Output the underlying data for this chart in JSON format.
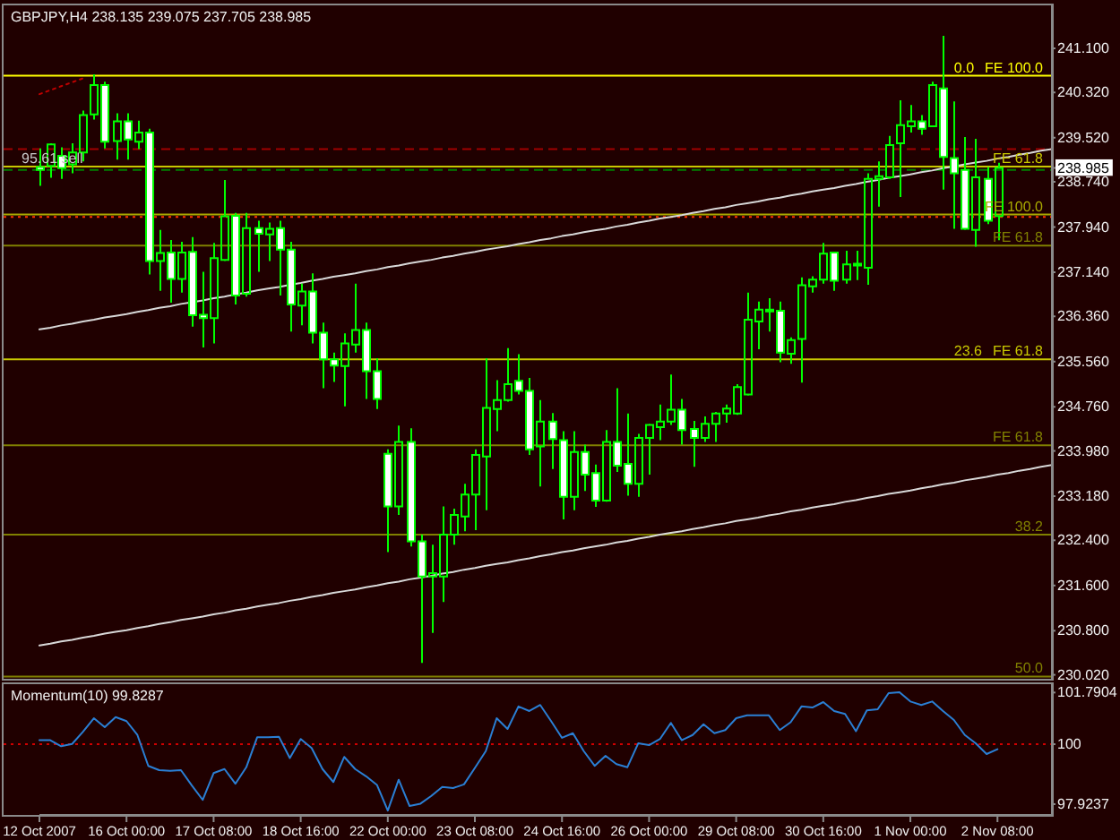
{
  "chart_data": [
    {
      "type": "candlestick",
      "title": "GBPJPY,H4 238.135 239.075 237.705 238.985",
      "color": "#00ff00",
      "categories": [
        null,
        null,
        null,
        null,
        null,
        null,
        null,
        null,
        null,
        null,
        null,
        null,
        null,
        null,
        null,
        null,
        null,
        null,
        null,
        null,
        null,
        null,
        null,
        null,
        null,
        null,
        null,
        null,
        null,
        null,
        null,
        null,
        null,
        null,
        null,
        null,
        null,
        null,
        null,
        null,
        null,
        null,
        null,
        null,
        null,
        null,
        null,
        null,
        null,
        null,
        null,
        null,
        null,
        null,
        null,
        null,
        null,
        null,
        null,
        null,
        null,
        null,
        null,
        null,
        null,
        null,
        null,
        null,
        null,
        null,
        null,
        null,
        null,
        null,
        null,
        null,
        null,
        null,
        null,
        null,
        null,
        null,
        null,
        null,
        null,
        null,
        null,
        null,
        null,
        null,
        null,
        null,
        null,
        null
      ],
      "ohlc": [
        [
          239.0,
          239.33,
          238.67,
          238.95
        ],
        [
          239.02,
          239.42,
          238.81,
          239.4
        ],
        [
          239.2,
          239.35,
          238.79,
          238.98
        ],
        [
          239.05,
          239.42,
          238.89,
          239.26
        ],
        [
          239.26,
          240.0,
          239.1,
          239.92
        ],
        [
          239.93,
          240.64,
          239.84,
          240.45
        ],
        [
          240.45,
          240.51,
          239.33,
          239.45
        ],
        [
          239.46,
          239.95,
          239.13,
          239.81
        ],
        [
          239.81,
          239.95,
          239.13,
          239.49
        ],
        [
          239.45,
          239.82,
          239.32,
          239.61
        ],
        [
          239.61,
          239.68,
          237.1,
          237.34
        ],
        [
          237.34,
          237.89,
          236.81,
          237.48
        ],
        [
          237.49,
          237.71,
          236.6,
          237.02
        ],
        [
          237.02,
          237.68,
          236.78,
          237.49
        ],
        [
          237.5,
          237.76,
          236.18,
          236.38
        ],
        [
          236.39,
          237.15,
          235.81,
          236.33
        ],
        [
          236.33,
          237.66,
          235.88,
          237.39
        ],
        [
          237.36,
          238.77,
          237.34,
          238.13
        ],
        [
          238.14,
          238.19,
          236.57,
          236.73
        ],
        [
          236.76,
          238.19,
          236.71,
          237.92
        ],
        [
          237.92,
          238.05,
          237.15,
          237.82
        ],
        [
          237.81,
          238.02,
          237.34,
          237.91
        ],
        [
          237.92,
          238.05,
          236.73,
          237.54
        ],
        [
          237.54,
          237.68,
          236.09,
          236.57
        ],
        [
          236.55,
          236.94,
          236.2,
          236.8
        ],
        [
          236.8,
          237.12,
          235.88,
          236.07
        ],
        [
          236.07,
          236.25,
          235.09,
          235.6
        ],
        [
          235.6,
          235.72,
          235.2,
          235.49
        ],
        [
          235.48,
          236.06,
          234.77,
          235.88
        ],
        [
          235.86,
          236.94,
          235.72,
          236.12
        ],
        [
          236.12,
          236.25,
          234.9,
          235.39
        ],
        [
          235.39,
          235.62,
          234.72,
          234.9
        ],
        [
          233.93,
          234.01,
          232.19,
          233.0
        ],
        [
          233.0,
          234.43,
          232.85,
          234.14
        ],
        [
          234.14,
          234.38,
          232.29,
          232.38
        ],
        [
          232.38,
          232.5,
          230.23,
          231.76
        ],
        [
          231.76,
          232.32,
          230.76,
          231.82
        ],
        [
          231.76,
          233.0,
          231.31,
          232.5
        ],
        [
          232.5,
          232.96,
          232.32,
          232.85
        ],
        [
          232.82,
          233.4,
          232.56,
          233.21
        ],
        [
          233.21,
          234.01,
          232.58,
          233.91
        ],
        [
          233.88,
          235.62,
          232.93,
          234.74
        ],
        [
          234.72,
          235.23,
          234.33,
          234.88
        ],
        [
          234.88,
          235.8,
          234.85,
          235.16
        ],
        [
          235.22,
          235.69,
          234.98,
          235.04
        ],
        [
          235.04,
          235.27,
          233.91,
          234.01
        ],
        [
          234.06,
          234.88,
          233.35,
          234.5
        ],
        [
          234.5,
          234.65,
          233.66,
          234.19
        ],
        [
          234.17,
          234.33,
          232.77,
          233.17
        ],
        [
          233.17,
          234.33,
          232.93,
          233.96
        ],
        [
          233.96,
          234.09,
          233.27,
          233.56
        ],
        [
          233.59,
          233.74,
          232.99,
          233.1
        ],
        [
          233.1,
          234.35,
          233.08,
          234.14
        ],
        [
          234.14,
          235.09,
          233.61,
          233.72
        ],
        [
          233.75,
          234.64,
          233.19,
          233.4
        ],
        [
          233.4,
          234.28,
          233.17,
          234.21
        ],
        [
          234.21,
          234.46,
          233.56,
          234.44
        ],
        [
          234.4,
          234.8,
          234.17,
          234.5
        ],
        [
          234.5,
          235.33,
          234.44,
          234.71
        ],
        [
          234.71,
          234.9,
          234.09,
          234.35
        ],
        [
          234.37,
          234.51,
          233.7,
          234.21
        ],
        [
          234.21,
          234.59,
          234.14,
          234.46
        ],
        [
          234.46,
          234.67,
          234.14,
          234.64
        ],
        [
          234.64,
          234.8,
          234.48,
          234.73
        ],
        [
          234.64,
          235.16,
          234.62,
          235.11
        ],
        [
          234.98,
          236.78,
          234.96,
          236.3
        ],
        [
          236.27,
          236.62,
          235.78,
          236.48
        ],
        [
          236.48,
          236.68,
          236.09,
          236.46
        ],
        [
          236.46,
          236.62,
          235.55,
          235.72
        ],
        [
          235.7,
          235.99,
          235.52,
          235.94
        ],
        [
          235.96,
          237.05,
          235.19,
          236.91
        ],
        [
          236.89,
          237.07,
          236.78,
          237.01
        ],
        [
          237.01,
          237.66,
          236.94,
          237.47
        ],
        [
          237.49,
          237.49,
          236.81,
          236.99
        ],
        [
          237.01,
          237.52,
          236.94,
          237.28
        ],
        [
          237.29,
          237.52,
          237.0,
          237.28
        ],
        [
          237.22,
          238.89,
          236.92,
          238.79
        ],
        [
          238.79,
          239.1,
          238.3,
          238.84
        ],
        [
          238.82,
          239.55,
          238.79,
          239.39
        ],
        [
          239.42,
          240.18,
          238.47,
          239.74
        ],
        [
          239.72,
          240.1,
          239.61,
          239.81
        ],
        [
          239.81,
          239.92,
          239.57,
          239.68
        ],
        [
          239.72,
          240.51,
          239.72,
          240.45
        ],
        [
          240.39,
          241.32,
          238.6,
          239.18
        ],
        [
          239.16,
          240.16,
          237.91,
          238.89
        ],
        [
          238.95,
          239.53,
          237.89,
          237.91
        ],
        [
          237.89,
          239.5,
          237.59,
          238.82
        ],
        [
          238.79,
          239.0,
          237.99,
          238.05
        ],
        [
          238.135,
          239.075,
          237.705,
          238.985
        ],
        null,
        null,
        null,
        null,
        null
      ],
      "series": [
        {
          "type": "line",
          "color": "#d8d8d8",
          "values": [
            236.13,
            236.16,
            236.2,
            236.23,
            236.27,
            236.3,
            236.34,
            236.37,
            236.4,
            236.44,
            236.47,
            236.51,
            236.54,
            236.58,
            236.61,
            236.64,
            236.68,
            236.71,
            236.75,
            236.78,
            236.82,
            236.85,
            236.88,
            236.92,
            236.95,
            236.99,
            237.02,
            237.06,
            237.09,
            237.12,
            237.16,
            237.19,
            237.23,
            237.26,
            237.3,
            237.33,
            237.36,
            237.4,
            237.43,
            237.47,
            237.5,
            237.54,
            237.57,
            237.6,
            237.64,
            237.67,
            237.71,
            237.74,
            237.78,
            237.81,
            237.85,
            237.88,
            237.91,
            237.95,
            237.98,
            238.02,
            238.05,
            238.09,
            238.12,
            238.15,
            238.19,
            238.22,
            238.26,
            238.29,
            238.33,
            238.36,
            238.39,
            238.43,
            238.46,
            238.5,
            238.53,
            238.57,
            238.6,
            238.63,
            238.67,
            238.7,
            238.74,
            238.77,
            238.81,
            238.84,
            238.87,
            238.91,
            238.94,
            238.98,
            239.01,
            239.05,
            239.08,
            239.11,
            239.15,
            239.18,
            239.22,
            239.25,
            239.29,
            239.32
          ]
        },
        {
          "type": "line",
          "color": "#d8d8d8",
          "values": [
            230.54,
            230.57,
            230.61,
            230.64,
            230.68,
            230.71,
            230.75,
            230.78,
            230.81,
            230.85,
            230.88,
            230.92,
            230.95,
            230.99,
            231.02,
            231.05,
            231.09,
            231.12,
            231.16,
            231.19,
            231.23,
            231.26,
            231.29,
            231.33,
            231.36,
            231.4,
            231.43,
            231.47,
            231.5,
            231.53,
            231.57,
            231.6,
            231.64,
            231.67,
            231.71,
            231.74,
            231.77,
            231.81,
            231.84,
            231.88,
            231.91,
            231.95,
            231.98,
            232.01,
            232.05,
            232.08,
            232.12,
            232.15,
            232.19,
            232.22,
            232.26,
            232.29,
            232.32,
            232.36,
            232.39,
            232.43,
            232.46,
            232.5,
            232.53,
            232.56,
            232.6,
            232.63,
            232.67,
            232.7,
            232.74,
            232.77,
            232.8,
            232.84,
            232.87,
            232.91,
            232.94,
            232.98,
            233.01,
            233.04,
            233.08,
            233.11,
            233.15,
            233.18,
            233.22,
            233.25,
            233.28,
            233.32,
            233.35,
            233.39,
            233.42,
            233.46,
            233.49,
            233.52,
            233.56,
            233.59,
            233.63,
            233.66,
            233.7,
            233.73
          ]
        },
        {
          "type": "line",
          "color": "#c00000",
          "line_style": "dotted",
          "values": [
            240.29,
            240.36,
            240.43,
            240.5,
            240.57,
            null,
            null,
            null,
            null,
            null,
            null,
            null,
            null,
            null,
            null,
            null,
            null,
            null,
            null,
            null,
            null,
            null,
            null,
            null,
            null,
            null,
            null,
            null,
            null,
            null,
            null,
            null,
            null,
            null,
            null,
            null,
            null,
            null,
            null,
            null,
            null,
            null,
            null,
            null,
            null,
            null,
            null,
            null,
            null,
            null,
            null,
            null,
            null,
            null,
            null,
            null,
            null,
            null,
            null,
            null,
            null,
            null,
            null,
            null,
            null,
            null,
            null,
            null,
            null,
            null,
            null,
            null,
            null,
            null,
            null,
            null,
            null,
            null,
            null,
            null,
            null,
            null,
            null,
            null,
            null,
            null,
            null,
            null,
            null,
            null,
            null,
            null,
            null,
            null
          ]
        }
      ],
      "ylim": [
        229.95,
        241.86
      ],
      "yticks": [
        {
          "value": 241.1,
          "label": "241.100"
        },
        {
          "value": 240.32,
          "label": "240.320"
        },
        {
          "value": 239.52,
          "label": "239.520"
        },
        {
          "value": 238.985,
          "label": "238.985"
        },
        {
          "value": 238.74,
          "label": "238.740"
        },
        {
          "value": 237.94,
          "label": "237.940"
        },
        {
          "value": 237.14,
          "label": "237.140"
        },
        {
          "value": 236.36,
          "label": "236.360"
        },
        {
          "value": 235.56,
          "label": "235.560"
        },
        {
          "value": 234.76,
          "label": "234.760"
        },
        {
          "value": 233.98,
          "label": "233.980"
        },
        {
          "value": 233.18,
          "label": "233.180"
        },
        {
          "value": 232.4,
          "label": "232.400"
        },
        {
          "value": 231.6,
          "label": "231.600"
        },
        {
          "value": 230.8,
          "label": "230.800"
        },
        {
          "value": 230.02,
          "label": "230.020"
        }
      ],
      "tick_labels": "y",
      "ref_lines": [
        {
          "axis": "y",
          "value": 240.615,
          "label": "FE 100.0",
          "color": "#ffff00"
        },
        {
          "axis": "y",
          "value": 239.32,
          "color": "#a00000",
          "line_style": "dashed"
        },
        {
          "axis": "y",
          "value": 239.01,
          "label": "FE 61.8",
          "color": "#c8c800"
        },
        {
          "axis": "y",
          "value": 238.95,
          "label": "95.61 sell",
          "color": "#008000",
          "line_style": "dashed"
        },
        {
          "axis": "y",
          "value": 238.16,
          "label": "FE 100.0",
          "color": "#a8a800"
        },
        {
          "axis": "y",
          "value": 238.12,
          "color": "#ff3000",
          "line_style": "dotted"
        },
        {
          "axis": "y",
          "value": 237.61,
          "label": "FE 61.8",
          "color": "#808000"
        },
        {
          "axis": "y",
          "value": 235.6,
          "label": "FE 61.8",
          "color": "#c8c800"
        },
        {
          "axis": "y",
          "value": 234.08,
          "label": "FE 61.8",
          "color": "#808000"
        },
        {
          "axis": "y",
          "value": 232.5,
          "color": "#808000"
        },
        {
          "axis": "y",
          "value": 229.99,
          "color": "#808000"
        }
      ],
      "annotations": [
        {
          "text": "0.0",
          "y": 240.615
        },
        {
          "text": "23.6",
          "y": 235.6
        },
        {
          "text": "38.2",
          "y": 232.5
        },
        {
          "text": "50.0",
          "y": 229.99
        }
      ]
    },
    {
      "type": "line",
      "title": "Momentum(10) 99.8287",
      "color": "#2a7fd4",
      "categories": [
        "12 Oct 2007",
        null,
        null,
        null,
        null,
        null,
        null,
        null,
        "16 Oct 00:00",
        null,
        null,
        null,
        null,
        null,
        null,
        null,
        "17 Oct 08:00",
        null,
        null,
        null,
        null,
        null,
        null,
        null,
        "18 Oct 16:00",
        null,
        null,
        null,
        null,
        null,
        null,
        null,
        "22 Oct 00:00",
        null,
        null,
        null,
        null,
        null,
        null,
        null,
        "23 Oct 08:00",
        null,
        null,
        null,
        null,
        null,
        null,
        null,
        "24 Oct 16:00",
        null,
        null,
        null,
        null,
        null,
        null,
        null,
        "26 Oct 00:00",
        null,
        null,
        null,
        null,
        null,
        null,
        null,
        "29 Oct 08:00",
        null,
        null,
        null,
        null,
        null,
        null,
        null,
        "30 Oct 16:00",
        null,
        null,
        null,
        null,
        null,
        null,
        null,
        "1 Nov 00:00",
        null,
        null,
        null,
        null,
        null,
        null,
        null,
        "2 Nov 08:00",
        null,
        null,
        null,
        null,
        null
      ],
      "values": [
        100.14,
        100.14,
        99.93,
        100.01,
        100.43,
        100.9,
        100.59,
        100.94,
        100.8,
        100.32,
        99.25,
        99.1,
        99.08,
        99.1,
        98.57,
        98.07,
        99.0,
        99.14,
        98.63,
        99.2,
        100.24,
        100.24,
        100.26,
        99.52,
        100.18,
        99.87,
        99.14,
        98.69,
        99.56,
        99.14,
        98.89,
        98.59,
        97.7,
        98.77,
        97.86,
        97.94,
        98.21,
        98.52,
        98.48,
        98.61,
        99.18,
        99.76,
        100.9,
        100.53,
        101.31,
        101.15,
        101.36,
        100.8,
        100.22,
        100.38,
        99.76,
        99.25,
        99.6,
        99.31,
        99.2,
        100.03,
        99.97,
        100.18,
        100.74,
        100.14,
        100.32,
        100.69,
        100.38,
        100.49,
        100.9,
        101.0,
        101.0,
        101.0,
        100.49,
        100.76,
        101.31,
        101.27,
        101.46,
        101.15,
        101.05,
        100.45,
        101.17,
        101.21,
        101.77,
        101.8,
        101.48,
        101.36,
        101.48,
        101.15,
        100.84,
        100.32,
        100.03,
        99.66,
        99.8287,
        null,
        null,
        null,
        null,
        null
      ],
      "ylim": [
        97.55,
        102.08
      ],
      "yticks": [
        101.7904,
        100,
        97.9237
      ],
      "ref_lines": [
        {
          "axis": "y",
          "value": 100,
          "color": "#d00000",
          "line_style": "dotted"
        }
      ]
    }
  ]
}
